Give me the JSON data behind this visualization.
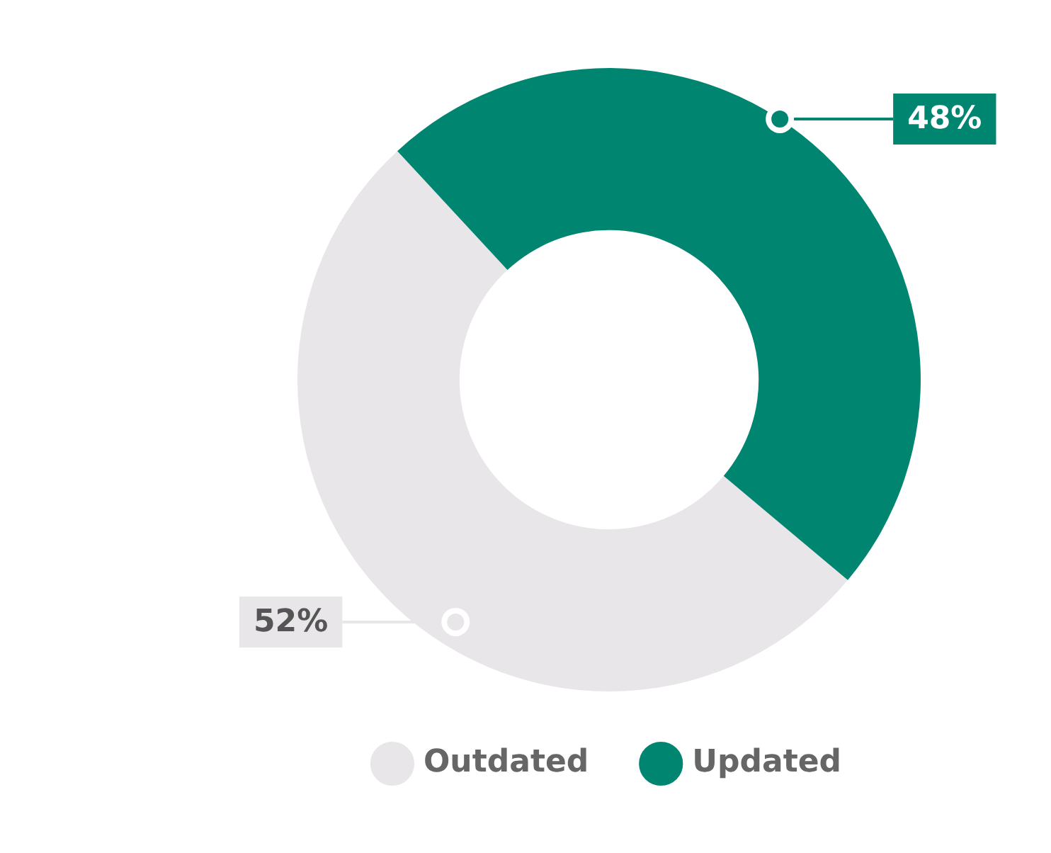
{
  "chart_data": {
    "type": "donut",
    "categories": [
      "Outdated",
      "Updated"
    ],
    "values": [
      52,
      48
    ],
    "value_labels": [
      "52%",
      "48%"
    ],
    "colors": [
      "#e8e6e8",
      "#008571"
    ],
    "legend": "bottom"
  }
}
